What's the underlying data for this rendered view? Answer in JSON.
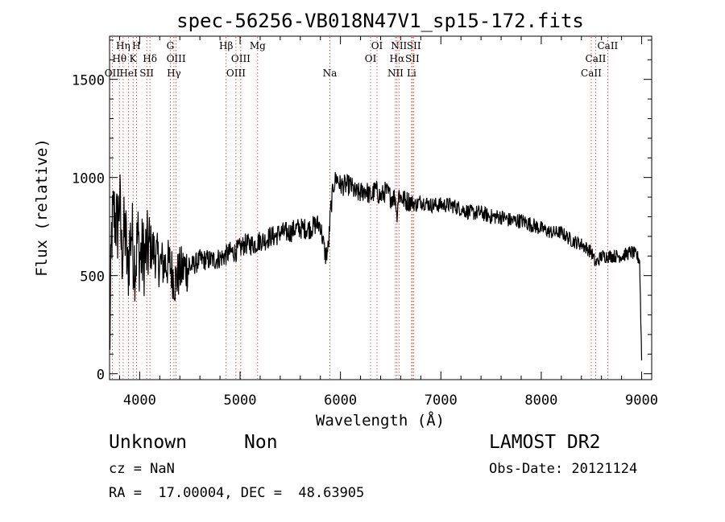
{
  "chart_data": {
    "type": "line",
    "title": "spec-56256-VB018N47V1_sp15-172.fits",
    "xlabel": "Wavelength (Å)",
    "ylabel": "Flux (relative)",
    "xlim": [
      3700,
      9100
    ],
    "ylim": [
      -30,
      1720
    ],
    "xticks": [
      4000,
      5000,
      6000,
      7000,
      8000,
      9000
    ],
    "yticks": [
      0,
      500,
      1000,
      1500
    ],
    "grid": false,
    "line_color": "#000000",
    "marker_color": "#cc3333",
    "lines": [
      {
        "label": "OII",
        "x": 3727,
        "row": 3
      },
      {
        "label": "Hθ",
        "x": 3798,
        "row": 2
      },
      {
        "label": "Hη",
        "x": 3835,
        "row": 1
      },
      {
        "label": "HeI",
        "x": 3889,
        "row": 3
      },
      {
        "label": "K",
        "x": 3934,
        "row": 2
      },
      {
        "label": "H",
        "x": 3968,
        "row": 1
      },
      {
        "label": "SII",
        "x": 4070,
        "row": 3
      },
      {
        "label": "Hδ",
        "x": 4102,
        "row": 2
      },
      {
        "label": "G",
        "x": 4305,
        "row": 1
      },
      {
        "label": "Hγ",
        "x": 4341,
        "row": 3
      },
      {
        "label": "OIII",
        "x": 4363,
        "row": 2
      },
      {
        "label": "Hβ",
        "x": 4861,
        "row": 1
      },
      {
        "label": "OIII",
        "x": 4959,
        "row": 3
      },
      {
        "label": "OIII",
        "x": 5007,
        "row": 2
      },
      {
        "label": "Mg",
        "x": 5175,
        "row": 1
      },
      {
        "label": "Na",
        "x": 5894,
        "row": 3
      },
      {
        "label": "OI",
        "x": 6300,
        "row": 2
      },
      {
        "label": "OI",
        "x": 6364,
        "row": 1
      },
      {
        "label": "NII",
        "x": 6548,
        "row": 3
      },
      {
        "label": "Hα",
        "x": 6563,
        "row": 2
      },
      {
        "label": "NII",
        "x": 6583,
        "row": 1
      },
      {
        "label": "Li",
        "x": 6708,
        "row": 3
      },
      {
        "label": "SII",
        "x": 6716,
        "row": 2
      },
      {
        "label": "SII",
        "x": 6731,
        "row": 1
      },
      {
        "label": "CaII",
        "x": 8498,
        "row": 3
      },
      {
        "label": "CaII",
        "x": 8542,
        "row": 2
      },
      {
        "label": "CaII",
        "x": 8662,
        "row": 1
      }
    ],
    "series": [
      {
        "x": [
          3700,
          3720,
          3740,
          3760,
          3780,
          3800,
          3820,
          3840,
          3860,
          3880,
          3900,
          3920,
          3940,
          3960,
          3980,
          4000,
          4050,
          4100,
          4150,
          4200,
          4250,
          4300,
          4350,
          4400,
          4450,
          4500,
          4550,
          4600,
          4650,
          4700,
          4750,
          4800,
          4850,
          4900,
          4950,
          5000,
          5050,
          5100,
          5150,
          5200,
          5250,
          5300,
          5350,
          5400,
          5450,
          5500,
          5550,
          5600,
          5650,
          5700,
          5750,
          5800,
          5850,
          5880,
          5900,
          5930,
          5960,
          6000,
          6050,
          6100,
          6150,
          6200,
          6250,
          6300,
          6350,
          6400,
          6450,
          6500,
          6550,
          6560,
          6580,
          6600,
          6650,
          6700,
          6750,
          6800,
          6900,
          7000,
          7100,
          7200,
          7300,
          7400,
          7500,
          7600,
          7700,
          7800,
          7900,
          8000,
          8100,
          8200,
          8300,
          8400,
          8500,
          8540,
          8600,
          8700,
          8800,
          8900,
          8950,
          8980,
          9000
        ],
        "y": [
          80,
          700,
          820,
          780,
          750,
          900,
          600,
          700,
          720,
          500,
          650,
          740,
          600,
          560,
          700,
          600,
          600,
          650,
          620,
          560,
          560,
          560,
          470,
          520,
          540,
          540,
          560,
          580,
          580,
          580,
          580,
          590,
          600,
          620,
          620,
          640,
          660,
          660,
          660,
          680,
          680,
          700,
          700,
          720,
          720,
          720,
          740,
          740,
          740,
          740,
          760,
          760,
          600,
          640,
          820,
          960,
          1000,
          960,
          960,
          960,
          920,
          920,
          940,
          900,
          940,
          900,
          930,
          900,
          900,
          800,
          920,
          900,
          880,
          880,
          860,
          880,
          860,
          860,
          860,
          840,
          820,
          820,
          800,
          800,
          780,
          780,
          760,
          740,
          720,
          720,
          680,
          660,
          620,
          560,
          600,
          600,
          600,
          620,
          600,
          580,
          80
        ]
      }
    ]
  },
  "info": {
    "class": "Unknown",
    "subclass": "Non",
    "cz": "cz = NaN",
    "coords": "RA =  17.00004, DEC =  48.63905",
    "survey": "LAMOST DR2",
    "obsdate": "Obs-Date: 20121124"
  }
}
